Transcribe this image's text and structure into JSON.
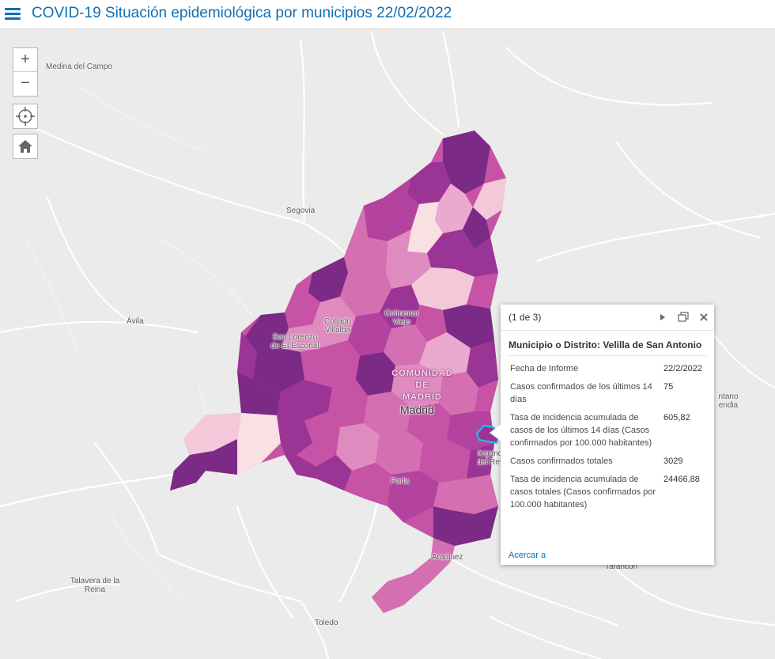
{
  "header": {
    "title": "COVID-19 Situación epidemiológica por municipios 22/02/2022"
  },
  "map": {
    "region_label": [
      "COMUNIDAD",
      "DE",
      "MADRID"
    ],
    "cities": {
      "medina": "Medina del Campo",
      "segovia": "Segovia",
      "avila": "Ávila",
      "collado": "Collado Villalba",
      "colmenar": "Colmenar Viejo",
      "sanlorenzo": "San Lorenzo de El Escorial",
      "madrid": "Madrid",
      "parla": "Parla",
      "arganda": "Arganda del Rey",
      "aranjuez": "Aranjuez",
      "talavera": "Talavera de la Reina",
      "toledo": "Toledo",
      "tarancon": "Tarancon",
      "east": "ntano endia"
    },
    "choropleth_colors": [
      "#7b2a86",
      "#9b3595",
      "#b4439f",
      "#c653a5",
      "#d46fb1",
      "#e08bc0",
      "#eaa9cf",
      "#f3c9da",
      "#f8e0e3"
    ],
    "selected_outline_color": "#19c6f0"
  },
  "controls": {
    "zoom_in": "+",
    "zoom_out": "−",
    "locate_icon": "locate-icon",
    "home_icon": "home-icon"
  },
  "popup": {
    "counter": "(1 de 3)",
    "title": "Municipio o Distrito: Velilla de San Antonio",
    "fields": [
      {
        "label": "Fecha de Informe",
        "value": "22/2/2022"
      },
      {
        "label": "Casos confirmados de los últimos 14 días",
        "value": "75"
      },
      {
        "label": "Tasa de incidencia acumulada de casos de los últimos 14 días (Casos confirmados por 100.000 habitantes)",
        "value": "605,82"
      },
      {
        "label": "Casos confirmados totales",
        "value": "3029"
      },
      {
        "label": "Tasa de incidencia acumulada de casos totales (Casos confirmados por 100.000 habitantes)",
        "value": "24466,88"
      }
    ],
    "zoom_link": "Acercar a"
  }
}
